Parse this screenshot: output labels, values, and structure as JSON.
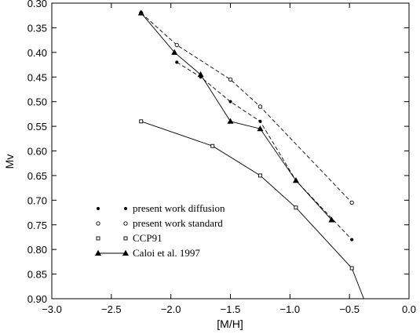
{
  "chart_data": {
    "type": "line",
    "xlabel": "[M/H]",
    "ylabel": "Mv",
    "xlim": [
      -3.0,
      0.0
    ],
    "ylim": [
      0.3,
      0.9
    ],
    "y_inverted": true,
    "grid": false,
    "legend_placement": "bottom-left",
    "x_ticks": [
      -3.0,
      -2.5,
      -2.0,
      -1.5,
      -1.0,
      -0.5,
      0.0
    ],
    "x_tick_labels": [
      "−3.0",
      "−2.5",
      "−2.0",
      "−1.5",
      "−1.0",
      "−0.5",
      "0.0"
    ],
    "y_ticks": [
      0.3,
      0.35,
      0.4,
      0.45,
      0.5,
      0.55,
      0.6,
      0.65,
      0.7,
      0.75,
      0.8,
      0.85,
      0.9
    ],
    "y_tick_labels": [
      "0.30",
      "0.35",
      "0.40",
      "0.45",
      "0.50",
      "0.55",
      "0.60",
      "0.65",
      "0.70",
      "0.75",
      "0.80",
      "0.85",
      "0.90"
    ],
    "series": [
      {
        "name": "present work diffusion",
        "marker": "filled-dot",
        "line": "dashed",
        "color": "#000000",
        "x": [
          -1.95,
          -1.75,
          -1.5,
          -1.25,
          -0.95,
          -0.48
        ],
        "y": [
          0.42,
          0.45,
          0.5,
          0.54,
          0.66,
          0.78
        ]
      },
      {
        "name": "present work standard",
        "marker": "open-circle",
        "line": "dashed",
        "color": "#000000",
        "x": [
          -2.25,
          -1.95,
          -1.5,
          -1.25,
          -0.48
        ],
        "y": [
          0.32,
          0.385,
          0.455,
          0.51,
          0.705
        ]
      },
      {
        "name": "CCP91",
        "marker": "open-square",
        "line": "solid",
        "color": "#000000",
        "x": [
          -2.25,
          -1.65,
          -1.25,
          -0.95,
          -0.48,
          -0.38
        ],
        "y": [
          0.54,
          0.59,
          0.65,
          0.715,
          0.838,
          0.9
        ]
      },
      {
        "name": "Caloi et al. 1997",
        "marker": "filled-triangle",
        "line": "solid",
        "color": "#000000",
        "x": [
          -2.25,
          -1.97,
          -1.75,
          -1.5,
          -1.25,
          -0.95,
          -0.65
        ],
        "y": [
          0.32,
          0.4,
          0.445,
          0.54,
          0.555,
          0.66,
          0.74
        ]
      }
    ]
  }
}
